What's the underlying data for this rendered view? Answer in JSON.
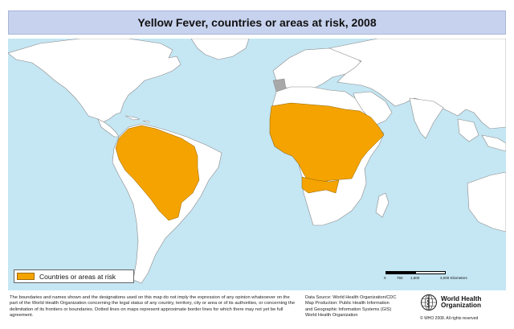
{
  "title": "Yellow Fever, countries or areas at risk, 2008",
  "colors": {
    "ocean": "#c5e6f3",
    "land": "#ffffff",
    "border": "#7a7a7a",
    "risk": "#f5a300",
    "no_data": "#a8a8a8"
  },
  "legend": {
    "label": "Countries or areas at risk"
  },
  "scale_bar": {
    "ticks": [
      "0",
      "750",
      "1,500",
      "3,000 Kilometers"
    ]
  },
  "disclaimer": "The boundaries and names shown and the designations used on this map do not imply the expression of any opinion whatsoever on the part of the World Health Organization concerning the legal status of any country, territory, city or area or of its authorities, or concerning the delimitation of its frontiers or boundaries. Dotted lines on maps represent approximate border lines for which there may not yet be full agreement.",
  "credits": {
    "data_source": "Data Source: World Health Organization/CDC",
    "map_production_1": "Map Production: Public Health Information",
    "map_production_2": "and Geographic Information Systems (GIS)",
    "map_production_3": "World Health Organization"
  },
  "organization": {
    "name_line1": "World Health",
    "name_line2": "Organization",
    "copyright": "© WHO 2008. All rights reserved"
  }
}
